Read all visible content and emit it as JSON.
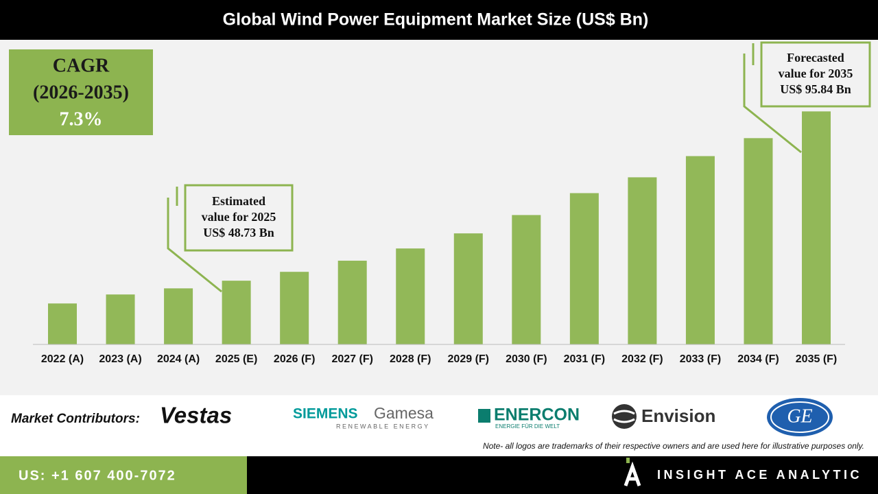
{
  "chart_data": {
    "type": "bar",
    "title": "Global Wind Power Equipment Market Size (US$ Bn)",
    "categories": [
      "2022 (A)",
      "2023 (A)",
      "2024 (A)",
      "2025 (E)",
      "2026 (F)",
      "2027 (F)",
      "2028 (F)",
      "2029 (F)",
      "2030 (F)",
      "2031 (F)",
      "2032 (F)",
      "2033 (F)",
      "2034 (F)",
      "2035 (F)"
    ],
    "values": [
      42.4,
      44.9,
      46.6,
      48.73,
      51.2,
      54.3,
      57.7,
      61.9,
      67.0,
      73.1,
      77.5,
      83.4,
      88.4,
      95.84
    ],
    "color": "#92b858",
    "ylim": [
      31,
      115
    ],
    "annotations": [
      {
        "lines": [
          "Estimated",
          "value for 2025",
          "US$ 48.73 Bn"
        ]
      },
      {
        "lines": [
          "Forecasted",
          "value for 2035",
          "US$ 95.84 Bn"
        ]
      }
    ]
  },
  "cagr": {
    "lines": [
      "CAGR",
      "(2026-2035)",
      "7.3%"
    ]
  },
  "contributors": {
    "label": "Market Contributors:",
    "vestas": "Vestas",
    "siemens": "SIEMENS",
    "gamesa": "Gamesa",
    "siemens_sub": "RENEWABLE ENERGY",
    "enercon": "ENERCON",
    "enercon_sub": "ENERGIE FÜR DIE WELT",
    "envision": "Envision",
    "ge": "GE"
  },
  "note": "Note- all logos are trademarks of their respective owners and are used here for illustrative purposes only.",
  "footer": {
    "phone": "US: +1 607 400-7072",
    "brand": "INSIGHT ACE ANALYTIC"
  }
}
